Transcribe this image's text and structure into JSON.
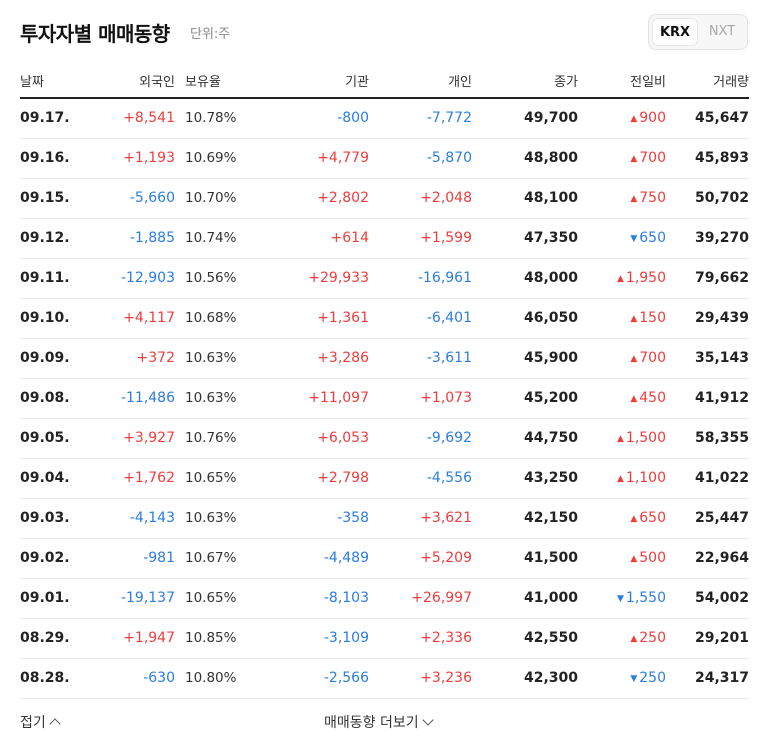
{
  "header": {
    "title": "투자자별 매매동향",
    "unit": "단위:주",
    "market_toggle": {
      "krx": "KRX",
      "nxt": "NXT",
      "selected": "KRX"
    }
  },
  "table": {
    "columns": [
      "날짜",
      "외국인",
      "보유율",
      "기관",
      "개인",
      "종가",
      "전일비",
      "거래량"
    ],
    "rows": [
      {
        "date": "09.17.",
        "foreign": "+8,541",
        "holding": "10.78%",
        "institution": "-800",
        "individual": "-7,772",
        "close": "49,700",
        "change_dir": "up",
        "change": "900",
        "volume": "45,647"
      },
      {
        "date": "09.16.",
        "foreign": "+1,193",
        "holding": "10.69%",
        "institution": "+4,779",
        "individual": "-5,870",
        "close": "48,800",
        "change_dir": "up",
        "change": "700",
        "volume": "45,893"
      },
      {
        "date": "09.15.",
        "foreign": "-5,660",
        "holding": "10.70%",
        "institution": "+2,802",
        "individual": "+2,048",
        "close": "48,100",
        "change_dir": "up",
        "change": "750",
        "volume": "50,702"
      },
      {
        "date": "09.12.",
        "foreign": "-1,885",
        "holding": "10.74%",
        "institution": "+614",
        "individual": "+1,599",
        "close": "47,350",
        "change_dir": "down",
        "change": "650",
        "volume": "39,270"
      },
      {
        "date": "09.11.",
        "foreign": "-12,903",
        "holding": "10.56%",
        "institution": "+29,933",
        "individual": "-16,961",
        "close": "48,000",
        "change_dir": "up",
        "change": "1,950",
        "volume": "79,662"
      },
      {
        "date": "09.10.",
        "foreign": "+4,117",
        "holding": "10.68%",
        "institution": "+1,361",
        "individual": "-6,401",
        "close": "46,050",
        "change_dir": "up",
        "change": "150",
        "volume": "29,439"
      },
      {
        "date": "09.09.",
        "foreign": "+372",
        "holding": "10.63%",
        "institution": "+3,286",
        "individual": "-3,611",
        "close": "45,900",
        "change_dir": "up",
        "change": "700",
        "volume": "35,143"
      },
      {
        "date": "09.08.",
        "foreign": "-11,486",
        "holding": "10.63%",
        "institution": "+11,097",
        "individual": "+1,073",
        "close": "45,200",
        "change_dir": "up",
        "change": "450",
        "volume": "41,912"
      },
      {
        "date": "09.05.",
        "foreign": "+3,927",
        "holding": "10.76%",
        "institution": "+6,053",
        "individual": "-9,692",
        "close": "44,750",
        "change_dir": "up",
        "change": "1,500",
        "volume": "58,355"
      },
      {
        "date": "09.04.",
        "foreign": "+1,762",
        "holding": "10.65%",
        "institution": "+2,798",
        "individual": "-4,556",
        "close": "43,250",
        "change_dir": "up",
        "change": "1,100",
        "volume": "41,022"
      },
      {
        "date": "09.03.",
        "foreign": "-4,143",
        "holding": "10.63%",
        "institution": "-358",
        "individual": "+3,621",
        "close": "42,150",
        "change_dir": "up",
        "change": "650",
        "volume": "25,447"
      },
      {
        "date": "09.02.",
        "foreign": "-981",
        "holding": "10.67%",
        "institution": "-4,489",
        "individual": "+5,209",
        "close": "41,500",
        "change_dir": "up",
        "change": "500",
        "volume": "22,964"
      },
      {
        "date": "09.01.",
        "foreign": "-19,137",
        "holding": "10.65%",
        "institution": "-8,103",
        "individual": "+26,997",
        "close": "41,000",
        "change_dir": "down",
        "change": "1,550",
        "volume": "54,002"
      },
      {
        "date": "08.29.",
        "foreign": "+1,947",
        "holding": "10.85%",
        "institution": "-3,109",
        "individual": "+2,336",
        "close": "42,550",
        "change_dir": "up",
        "change": "250",
        "volume": "29,201"
      },
      {
        "date": "08.28.",
        "foreign": "-630",
        "holding": "10.80%",
        "institution": "-2,566",
        "individual": "+3,236",
        "close": "42,300",
        "change_dir": "down",
        "change": "250",
        "volume": "24,317"
      }
    ]
  },
  "footer": {
    "fold_label": "접기",
    "more_label": "매매동향 더보기"
  },
  "colors": {
    "positive": "#f03c3c",
    "negative": "#2a7de1"
  },
  "icons": {
    "up": "triangle-up-icon",
    "down": "triangle-down-icon",
    "fold": "chevron-up-icon",
    "more": "chevron-down-icon"
  }
}
